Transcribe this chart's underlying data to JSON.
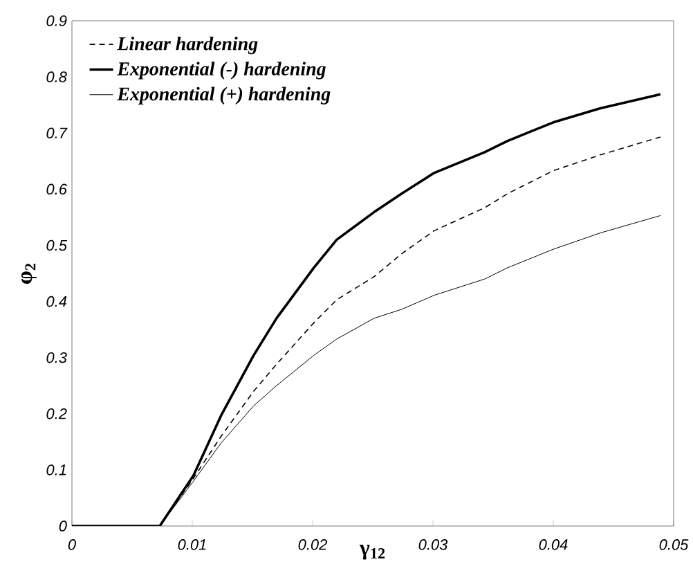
{
  "chart_data": {
    "type": "line",
    "xlabel": "γ$_{12}$",
    "ylabel": "φ$_{2}$",
    "x": [
      0,
      0.0073,
      0.0101,
      0.0124,
      0.0151,
      0.017,
      0.0201,
      0.022,
      0.0251,
      0.0274,
      0.0301,
      0.0343,
      0.0362,
      0.04,
      0.0439,
      0.0489
    ],
    "series": [
      {
        "name": "Linear hardening",
        "color": "#000000",
        "line_style": "dashed",
        "values": [
          0,
          0,
          0.085,
          0.16,
          0.24,
          0.288,
          0.362,
          0.403,
          0.444,
          0.485,
          0.526,
          0.567,
          0.592,
          0.633,
          0.661,
          0.693
        ]
      },
      {
        "name": "Exponential (-) hardening",
        "color": "#000000",
        "line_style": "solid",
        "values": [
          0,
          0,
          0.09,
          0.197,
          0.304,
          0.37,
          0.46,
          0.51,
          0.559,
          0.592,
          0.629,
          0.666,
          0.686,
          0.719,
          0.744,
          0.769
        ]
      },
      {
        "name": "Exponential (+) hardening",
        "color": "#000000",
        "line_style": "solid",
        "values": [
          0,
          0,
          0.08,
          0.148,
          0.214,
          0.25,
          0.304,
          0.333,
          0.37,
          0.386,
          0.411,
          0.44,
          0.46,
          0.493,
          0.522,
          0.553
        ]
      }
    ],
    "xlim": [
      0,
      0.05
    ],
    "xticks": [
      0,
      0.01,
      0.02,
      0.03,
      0.04,
      0.05
    ],
    "ylim": [
      0,
      0.9
    ],
    "yticks": [
      0,
      0.1,
      0.2,
      0.3,
      0.4,
      0.5,
      0.6,
      0.7,
      0.8,
      0.9
    ],
    "legend": "top left",
    "grid": false,
    "marker": "none"
  }
}
